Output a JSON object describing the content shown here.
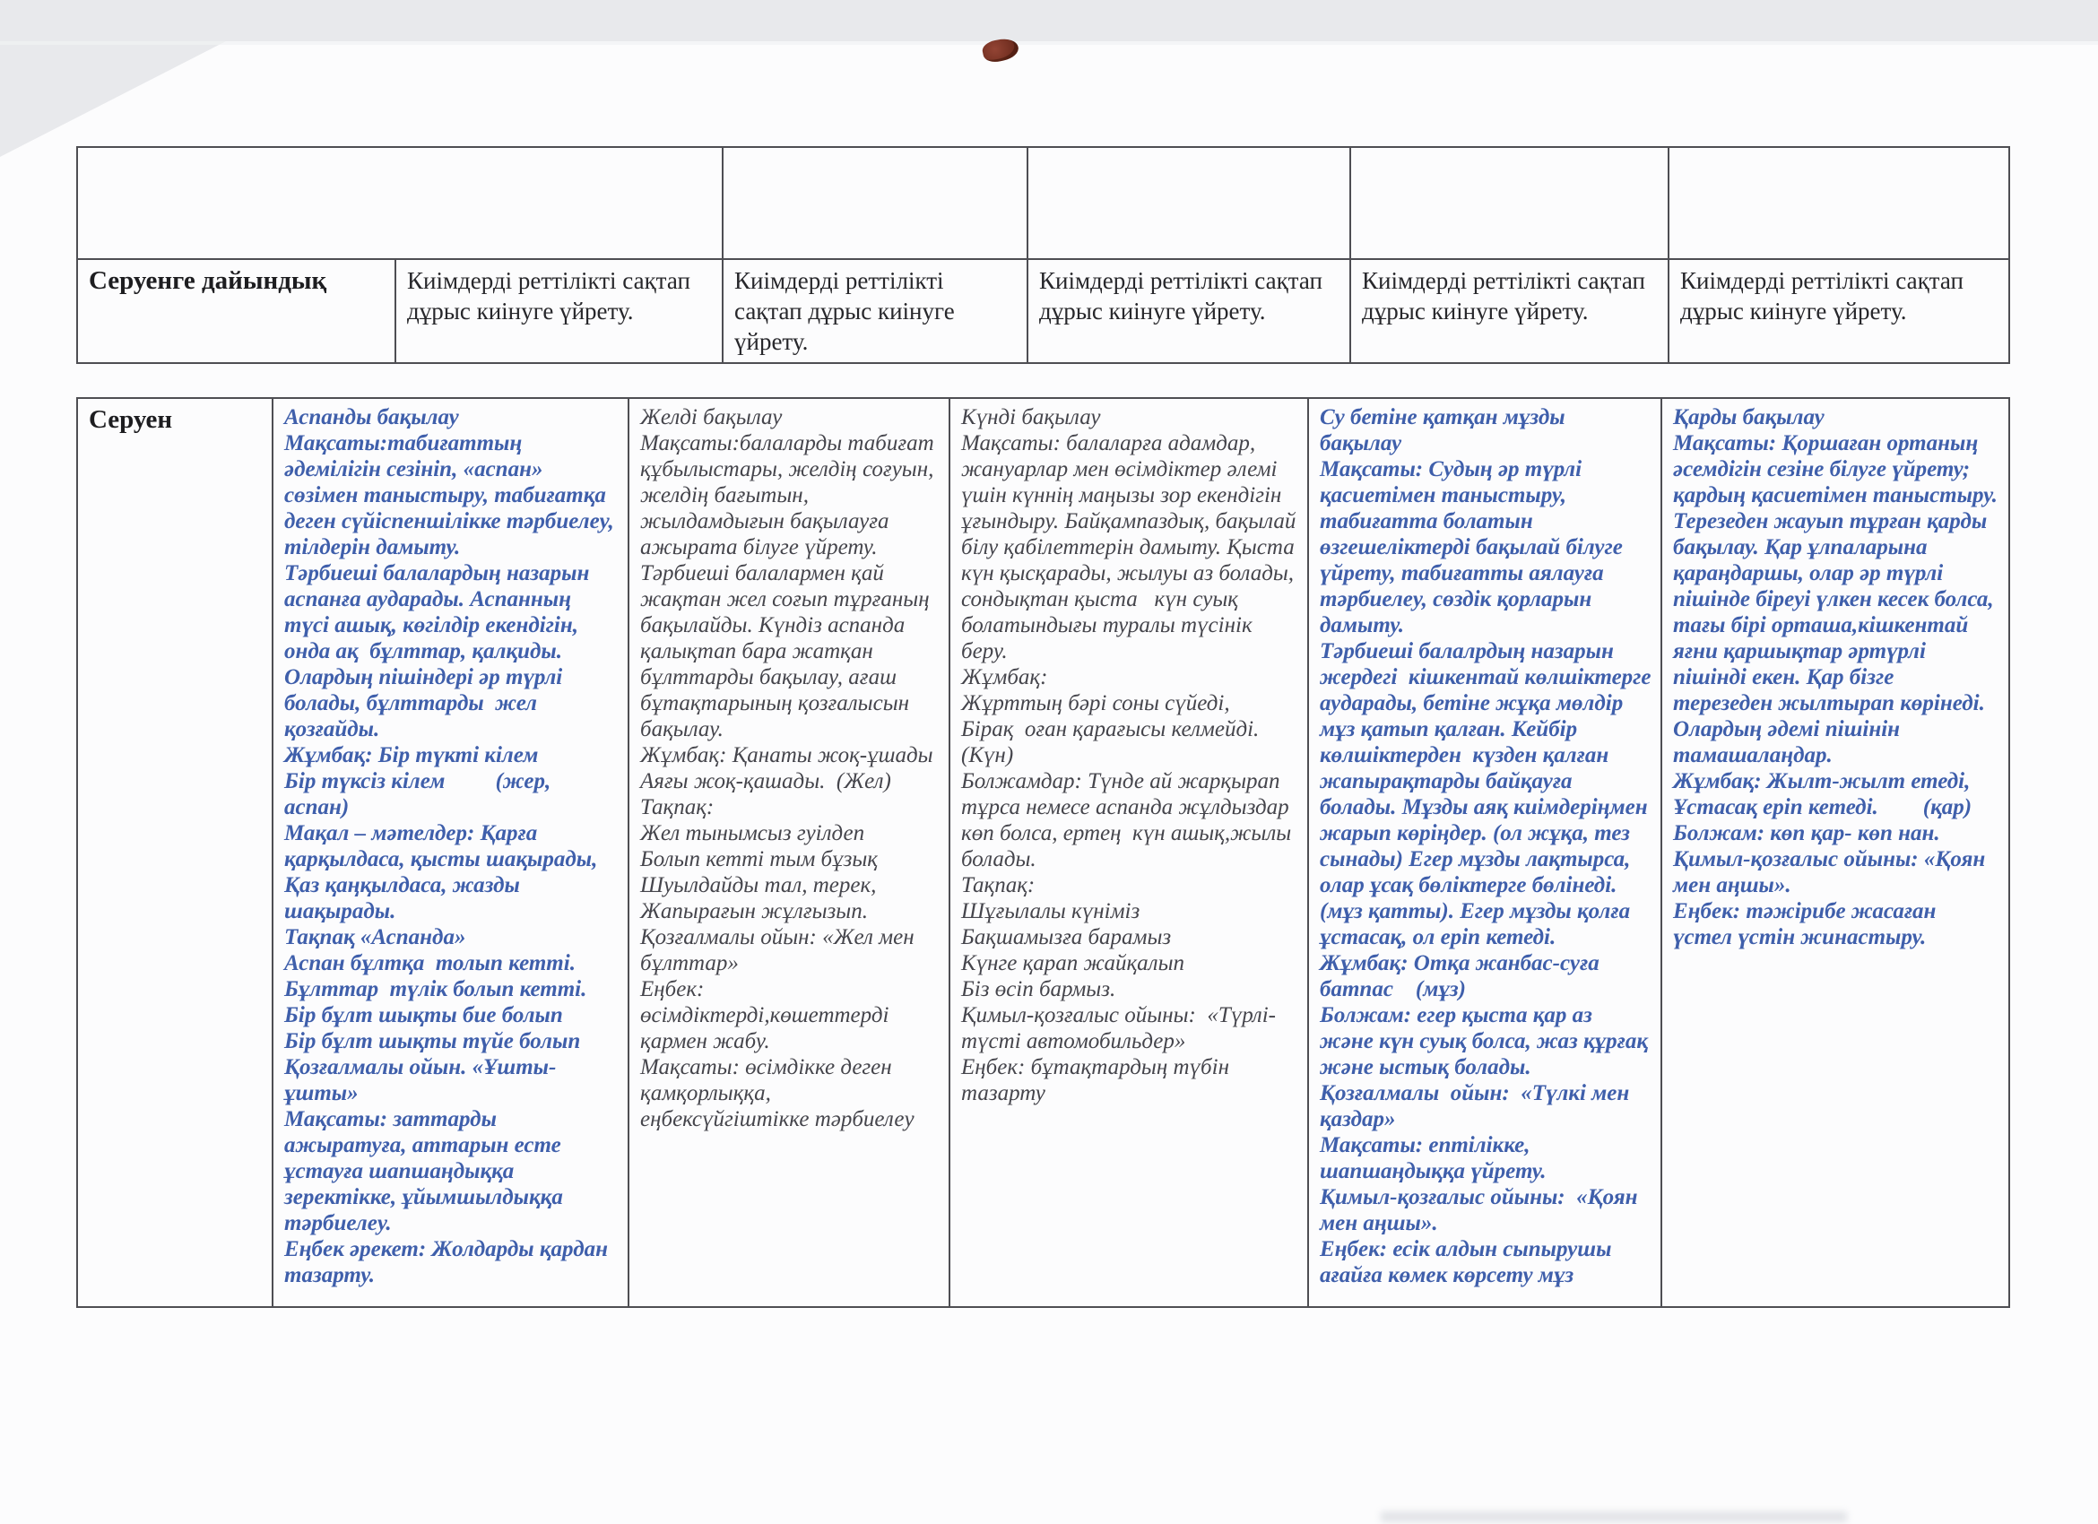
{
  "colors": {
    "ink_black": "#27272b",
    "ink_blue": "#3f5fab",
    "ink_dark_gray": "#45454c",
    "table_border": "#4e4e53",
    "scan_shadow": "#e8e9ec",
    "pin_mark": "#7d3526"
  },
  "prep": {
    "label": "Серуенге дайындық",
    "cells": [
      "Киімдерді реттілікті сақтап\nдұрыс киінуге үйрету.",
      "Киімдерді реттілікті\nсақтап дұрыс киінуге\nүйрету.",
      "Киімдерді реттілікті сақтап\nдұрыс киінуге үйрету.",
      "Киімдерді реттілікті сақтап\nдұрыс киінуге үйрету.",
      "Киімдерді реттілікті сақтап\nдұрыс киінуге үйрету."
    ]
  },
  "walk": {
    "label": "Серуен",
    "columns": [
      {
        "title": "Аспанды бақылау",
        "blocks": [
          "Аспанды бақылау",
          "Мақсаты:табиғаттың әдемілігін сезініп, «аспан» сөзімен таныстыру, табиғатқа деген сүйіспеншілікке тәрбиелеу, тілдерін дамыту.",
          "Тәрбиеші балалардың назарын аспанға аударады. Аспанның түсі ашық, көгілдір екендігін, онда ақ  бұлттар, қалқиды.",
          "Олардың пішіндері әр түрлі болады, бұлттарды  жел қозғайды.",
          "Жұмбақ: Бір түкті кілем\nБір түксіз кілем         (жер, аспан)",
          "Мақал – мәтелдер: Қарға қарқылдаса, қысты шақырады,\nҚаз қаңқылдаса, жазды шақырады.",
          "Тақпақ «Аспанда»",
          "Аспан бұлтқа  толып кетті.\nБұлттар  түлік болып кетті.\nБір бұлт шықты бие болып\nБір бұлт шықты түйе болып",
          "Қозғалмалы ойын. «Ұшты-ұшты»",
          "Мақсаты: заттарды ажыратуға, аттарын есте ұстауға шапшаңдыққа зеректікке, ұйымшылдыққа тәрбиелеу.",
          "Еңбек әрекет: Жолдарды қардан тазарту."
        ]
      },
      {
        "title": "Желді бақылау",
        "blocks": [
          "Желді бақылау",
          "Мақсаты:балаларды табиғат құбылыстары, желдің соғуын, желдің бағытын, жылдамдығын бақылауға ажырата білуге үйрету.",
          "Тәрбиеші балалармен қай жақтан жел соғып тұрғаның бақылайды. Күндіз аспанда қалықтап бара жатқан бұлттарды бақылау, ағаш бұтақтарының қозғалысын бақылау.",
          "Жұмбақ: Қанаты жоқ-ұшады\nАяғы жоқ-қашады.  (Жел)",
          "Тақпақ:",
          "Жел тынымсыз гуілдеп\nБолып кетті тым бұзық\nШуылдайды тал, терек,\nЖапырағын жұлғызып.",
          "Қозғалмалы ойын: «Жел мен бұлттар»",
          "Еңбек:\nөсімдіктерді,көшеттерді қармен жабу.",
          "Мақсаты: өсімдікке деген қамқорлыққа, еңбексүйгіштікке тәрбиелеу"
        ]
      },
      {
        "title": "Күнді бақылау",
        "blocks": [
          "Күнді бақылау",
          "Мақсаты: балаларға адамдар, жануарлар мен өсімдіктер әлемі үшін күннің маңызы зор екендігін ұғындыру. Байқампаздық, бақылай білу қабілеттерін дамыту. Қыста күн қысқарады, жылуы аз болады, сондықтан қыста   күн суық болатындығы туралы түсінік беру.",
          "Жұмбақ:\nЖұрттың бәрі соны сүйеді,\nБірақ  оған қарағысы келмейді. (Күн)",
          "Болжамдар: Түнде ай жарқырап тұрса немесе аспанда жұлдыздар көп болса, ертең  күн ашық,жылы болады.",
          "Тақпақ:\nШұғылалы күніміз\nБақшамызға барамыз\nКүнге қарап жайқалып\nБіз өсіп бармыз.",
          "Қимыл-қозғалыс ойыны:  «Түрлі-түсті автомобильдер»",
          "Еңбек: бұтақтардың түбін тазарту"
        ]
      },
      {
        "title": "Су бетіне қатқан мұзды бақылау",
        "blocks": [
          "Су бетіне қатқан мұзды бақылау",
          "Мақсаты: Судың әр түрлі қасиетімен таныстыру, табиғатта болатын өзгешеліктерді бақылай білуге үйрету, табиғатты аялауға тәрбиелеу, сөздік қорларын дамыту.",
          "Тәрбиеші балалрдың назарын жердегі  кішкентай көлшіктерге аударады, бетіне жұқа мөлдір мұз қатып қалған. Кейбір көлшіктерден  күзден қалған  жапырақтарды байқауға болады. Мұзды аяқ киімдеріңмен жарып көріңдер. (ол жұқа, тез сынады) Егер мұзды лақтырса, олар ұсақ бөліктерге бөлінеді. (мұз қатты). Егер мұзды қолға ұстасақ, ол еріп кетеді.",
          "Жұмбақ: Отқа жанбас-суға батпас    (мұз)",
          "Болжам: егер қыста қар аз және күн суық болса, жаз құрғақ және ыстық болады.",
          "Қозғалмалы  ойын:  «Түлкі мен қаздар»",
          "Мақсаты: ептілікке, шапшаңдыққа үйрету.",
          "Қимыл-қозғалыс ойыны:  «Қоян мен аңшы».",
          "Еңбек: есік алдын сыпырушы ағайға көмек көрсету мұз"
        ]
      },
      {
        "title": "Қарды бақылау",
        "blocks": [
          "Қарды бақылау",
          "Мақсаты: Қоршаған ортаның әсемдігін сезіне білуге үйрету; қардың қасиетімен таныстыру. Терезеден жауып тұрған қарды бақылау. Қар ұлпаларына  қараңдаршы, олар әр түрлі  пішінде біреуі үлкен кесек болса, тағы бірі орташа,кішкентай яғни қаршықтар әртүрлі пішінді екен. Қар бізге  терезеден жылтырап көрінеді. Олардың әдемі пішінін тамашалаңдар.",
          "Жұмбақ: Жылт-жылт етеді,\nҰстасақ еріп кетеді.        (қар)",
          "Болжам: көп қар- көп нан.",
          "Қимыл-қозғалыс ойыны: «Қоян мен аңшы».",
          "Еңбек: тәжірибе жасаған үстел үстін жинастыру."
        ]
      }
    ]
  }
}
